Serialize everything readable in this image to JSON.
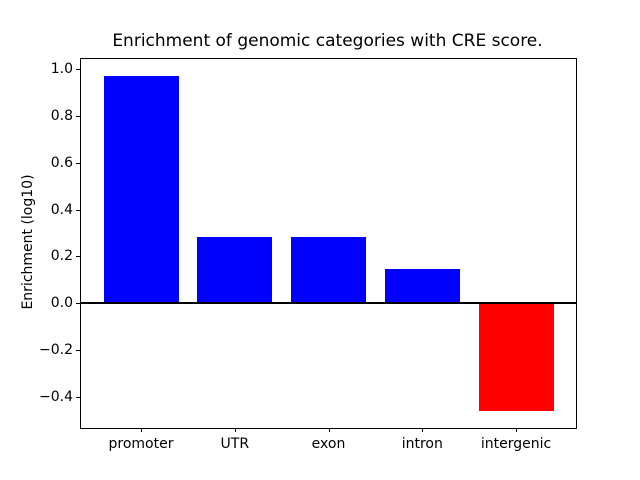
{
  "chart_data": {
    "type": "bar",
    "title": "Enrichment of genomic categories with CRE score.",
    "xlabel": "",
    "ylabel": "Enrichment (log10)",
    "categories": [
      "promoter",
      "UTR",
      "exon",
      "intron",
      "intergenic"
    ],
    "values": [
      0.97,
      0.285,
      0.285,
      0.147,
      -0.46
    ],
    "bar_colors": [
      "#0000ff",
      "#0000ff",
      "#0000ff",
      "#0000ff",
      "#ff0000"
    ],
    "positive_color": "#0000ff",
    "negative_color": "#ff0000",
    "bar_width": 0.8,
    "yticks": [
      1.0,
      0.8,
      0.6,
      0.4,
      0.2,
      0.0,
      -0.2,
      -0.4
    ],
    "ytick_labels": [
      "1.0",
      "0.8",
      "0.6",
      "0.4",
      "0.2",
      "0.0",
      "−0.2",
      "−0.4"
    ],
    "ylim": [
      -0.5315,
      1.0415
    ],
    "xlim": [
      -0.64,
      4.64
    ],
    "zero_line": true,
    "grid": false,
    "legend": null,
    "background_color": "#ffffff",
    "axis_color": "#000000"
  }
}
